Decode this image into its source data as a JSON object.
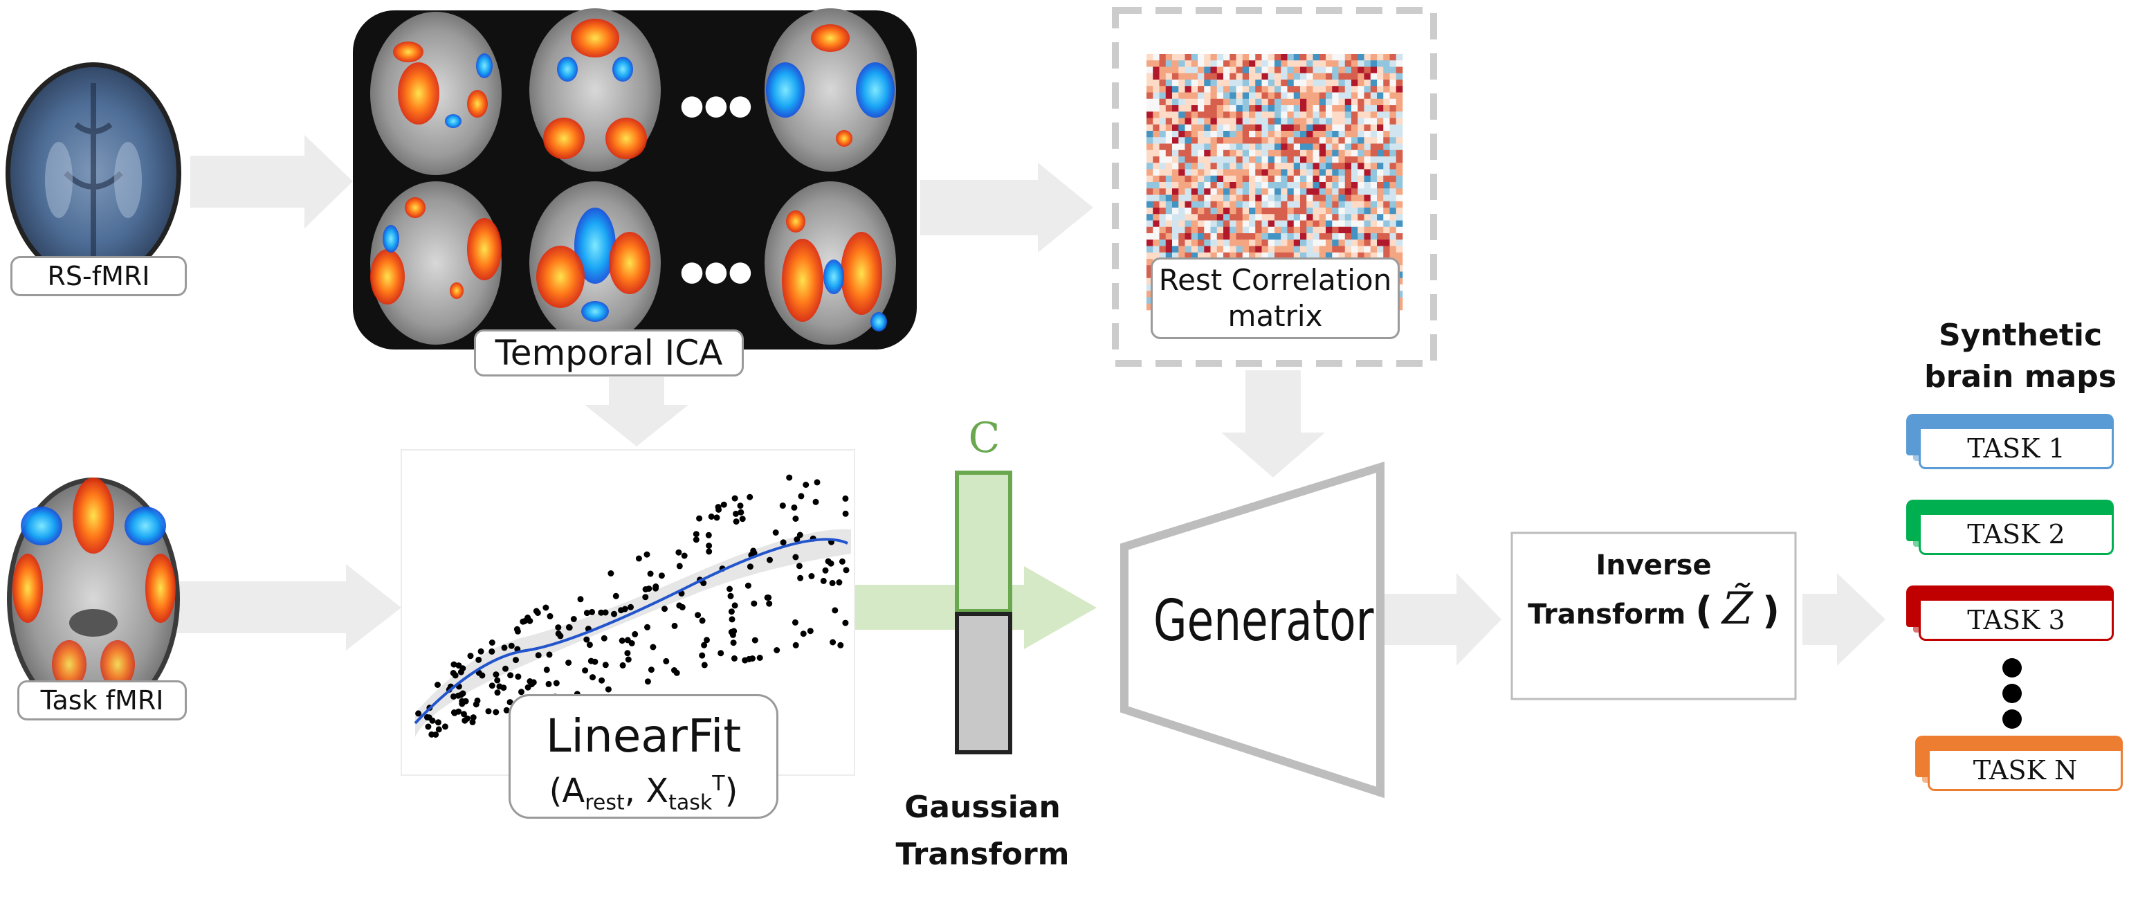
{
  "labels": {
    "rs_fmri": "RS-fMRI",
    "task_fmri": "Task fMRI",
    "temporal_ica": "Temporal ICA",
    "rest_corr_line1": "Rest Correlation",
    "rest_corr_line2": "matrix",
    "linearfit": "LinearFit",
    "lf_a": "A",
    "lf_rest": "rest",
    "lf_comma": ", X",
    "lf_task": "task",
    "lf_T": "T",
    "c_label": "C",
    "gaussian_line1": "Gaussian",
    "gaussian_line2": "Transform",
    "generator": "Generator",
    "inverse_line1": "Inverse",
    "inverse_line2": "Transform",
    "inverse_open": "(",
    "inverse_symbol": "Z̃",
    "inverse_close": ")",
    "synthetic_line1": "Synthetic",
    "synthetic_line2": "brain maps",
    "ellipsis": "●●●"
  },
  "tasks": [
    {
      "label": "TASK 1",
      "color": "#5b9bd5"
    },
    {
      "label": "TASK 2",
      "color": "#00b050"
    },
    {
      "label": "TASK 3",
      "color": "#c00000"
    },
    {
      "label": "TASK N",
      "color": "#ed7d31"
    }
  ],
  "colors": {
    "arrow": "#ececec",
    "green_arrow": "#d6e9c6",
    "c_green": "#6aa84f",
    "c_fill": "#d2e8c4",
    "gray_fill": "#c8c8c8",
    "generator_stroke": "#bdbdbd",
    "fit_line": "#2255cc"
  }
}
